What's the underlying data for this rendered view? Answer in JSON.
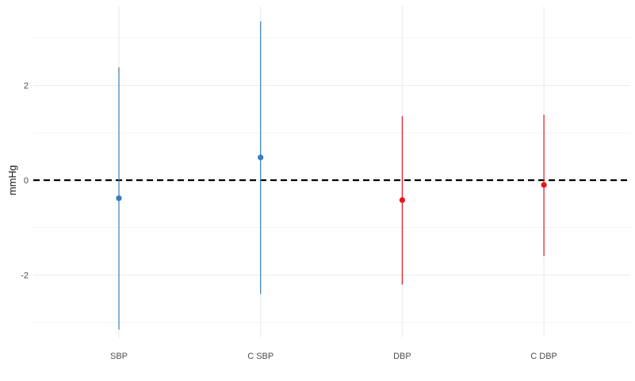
{
  "chart_data": {
    "type": "scatter",
    "subtype": "point-range",
    "title": "",
    "xlabel": "",
    "ylabel": "mmHg",
    "categories": [
      "SBP",
      "C SBP",
      "DBP",
      "C DBP"
    ],
    "points": [
      {
        "category": "SBP",
        "estimate": -0.38,
        "lower": -3.15,
        "upper": 2.38,
        "color": "#377eb8"
      },
      {
        "category": "C SBP",
        "estimate": 0.48,
        "lower": -2.4,
        "upper": 3.35,
        "color": "#377eb8"
      },
      {
        "category": "DBP",
        "estimate": -0.42,
        "lower": -2.2,
        "upper": 1.35,
        "color": "#e41a1c"
      },
      {
        "category": "C DBP",
        "estimate": -0.1,
        "lower": -1.6,
        "upper": 1.38,
        "color": "#e41a1c"
      }
    ],
    "yticks": [
      -2,
      0,
      2
    ],
    "ytick_labels": [
      "-2",
      "0",
      "2"
    ],
    "ylim": [
      -3.2,
      3.4
    ],
    "reference_line": {
      "y": 0,
      "style": "dashed",
      "color": "#000000"
    },
    "grid": true,
    "legend": "none",
    "colors": {
      "grid_major": "#ebebeb",
      "grid_minor": "#f5f5f5"
    }
  }
}
